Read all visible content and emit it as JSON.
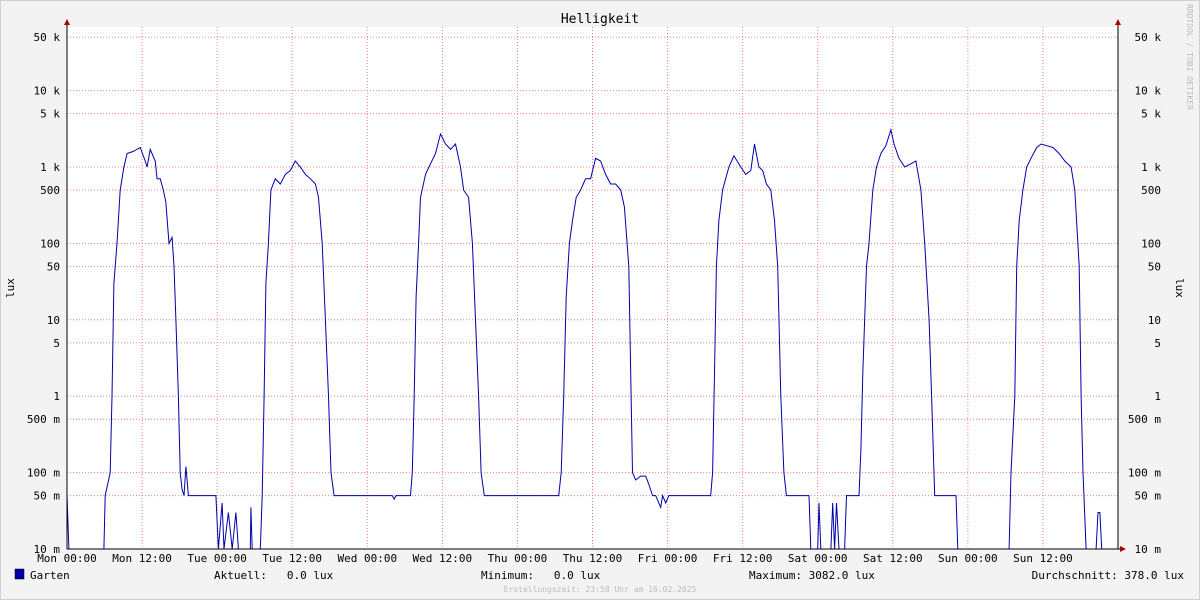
{
  "chart_data": {
    "type": "line",
    "title": "Helligkeit",
    "y_label": "lux",
    "watermark": "RRDTOOL / TOBI OETIKER",
    "log_y": true,
    "grid": true,
    "xlim": [
      0,
      168
    ],
    "ylim": [
      0.01,
      68000
    ],
    "xticks": [
      {
        "value": 0,
        "label": "Mon 00:00"
      },
      {
        "value": 12,
        "label": "Mon 12:00"
      },
      {
        "value": 24,
        "label": "Tue 00:00"
      },
      {
        "value": 36,
        "label": "Tue 12:00"
      },
      {
        "value": 48,
        "label": "Wed 00:00"
      },
      {
        "value": 60,
        "label": "Wed 12:00"
      },
      {
        "value": 72,
        "label": "Thu 00:00"
      },
      {
        "value": 84,
        "label": "Thu 12:00"
      },
      {
        "value": 96,
        "label": "Fri 00:00"
      },
      {
        "value": 108,
        "label": "Fri 12:00"
      },
      {
        "value": 120,
        "label": "Sat 00:00"
      },
      {
        "value": 132,
        "label": "Sat 12:00"
      },
      {
        "value": 144,
        "label": "Sun 00:00"
      },
      {
        "value": 156,
        "label": "Sun 12:00"
      }
    ],
    "yticks": [
      {
        "value": 50000,
        "label": "50 k"
      },
      {
        "value": 10000,
        "label": "10 k"
      },
      {
        "value": 5000,
        "label": "5 k"
      },
      {
        "value": 1000,
        "label": "1 k"
      },
      500,
      100,
      50,
      10,
      5,
      1,
      {
        "value": 0.5,
        "label": "500 m"
      },
      {
        "value": 0.1,
        "label": "100 m"
      },
      {
        "value": 0.05,
        "label": "50 m"
      },
      {
        "value": 0.01,
        "label": "10 m"
      }
    ],
    "series": [
      {
        "name": "Garten",
        "color": "#0000aa",
        "x": [
          0,
          0.3,
          5.9,
          6.1,
          6.9,
          7.2,
          7.5,
          8,
          8.5,
          9.1,
          9.6,
          10.6,
          11.7,
          12.5,
          12.8,
          13.3,
          14.1,
          14.4,
          14.9,
          15.4,
          15.8,
          16.3,
          16.8,
          17.1,
          17.4,
          17.8,
          18.1,
          18.4,
          18.7,
          19,
          19.4,
          23.8,
          24.2,
          24.8,
          25.1,
          25.8,
          26.4,
          27,
          27.4,
          29.3,
          29.4,
          29.6,
          30.9,
          31.2,
          31.5,
          31.8,
          32.2,
          32.6,
          33.3,
          34.1,
          34.9,
          35.7,
          36.5,
          37.3,
          38.1,
          38.9,
          39.7,
          40.2,
          40.8,
          41.3,
          41.8,
          42.2,
          42.7,
          52,
          52.3,
          52.6,
          54.9,
          55.2,
          55.5,
          55.8,
          56.2,
          56.5,
          57.3,
          58.1,
          58.9,
          59.7,
          60.5,
          61.3,
          62.1,
          62.9,
          63.4,
          64.2,
          64.8,
          65.3,
          65.8,
          66.2,
          66.7,
          78.6,
          79,
          79.4,
          79.8,
          80.3,
          80.8,
          81.4,
          82.1,
          82.9,
          83.7,
          84.5,
          85.3,
          86.1,
          86.9,
          87.7,
          88.5,
          89.1,
          89.8,
          90.1,
          90.4,
          90.9,
          91.7,
          92.5,
          93,
          93.6,
          94.1,
          94.9,
          95.2,
          95.7,
          96.2,
          102.9,
          103.2,
          103.5,
          103.8,
          104.2,
          104.8,
          105.8,
          106.6,
          107.7,
          108.5,
          109.3,
          109.9,
          110.6,
          111.2,
          111.8,
          112.5,
          113.1,
          113.6,
          114.1,
          114.6,
          115,
          118.6,
          118.9,
          120,
          120.2,
          120.5,
          122.1,
          122.4,
          122.7,
          123,
          123.4,
          124.3,
          124.6,
          126.6,
          126.9,
          127.2,
          127.8,
          128.2,
          128.8,
          129.4,
          130.1,
          130.9,
          131.7,
          132.2,
          133,
          133.9,
          134.9,
          135.7,
          136.5,
          137.1,
          137.8,
          138.2,
          138.7,
          142.1,
          142.4,
          150.6,
          150.9,
          151.5,
          151.8,
          152.2,
          152.8,
          153.4,
          154.1,
          155,
          155.7,
          156.6,
          157.6,
          158.6,
          159.5,
          160.5,
          161.1,
          161.8,
          162.1,
          162.4,
          162.9,
          164.5,
          164.8,
          165.1,
          165.4,
          168
        ],
        "values": [
          0.05,
          0.01,
          0.01,
          0.05,
          0.1,
          1,
          30,
          100,
          500,
          1000,
          1500,
          1600,
          1800,
          1200,
          1000,
          1700,
          1200,
          700,
          700,
          500,
          350,
          100,
          120,
          50,
          10,
          1,
          0.1,
          0.06,
          0.05,
          0.12,
          0.05,
          0.05,
          0.01,
          0.04,
          0.01,
          0.03,
          0.01,
          0.03,
          0.01,
          0.01,
          0.035,
          0.01,
          0.01,
          0.05,
          1,
          30,
          100,
          500,
          700,
          600,
          800,
          900,
          1200,
          1000,
          800,
          700,
          600,
          400,
          100,
          10,
          1,
          0.1,
          0.05,
          0.05,
          0.045,
          0.05,
          0.05,
          0.1,
          1,
          20,
          100,
          400,
          800,
          1100,
          1500,
          2700,
          2000,
          1700,
          2000,
          1000,
          500,
          400,
          100,
          10,
          1,
          0.1,
          0.05,
          0.05,
          0.1,
          1,
          20,
          100,
          200,
          400,
          500,
          700,
          700,
          1300,
          1200,
          800,
          600,
          600,
          500,
          300,
          50,
          2,
          0.1,
          0.08,
          0.09,
          0.09,
          0.07,
          0.05,
          0.05,
          0.035,
          0.05,
          0.04,
          0.05,
          0.05,
          0.1,
          2,
          50,
          200,
          500,
          1000,
          1400,
          1000,
          800,
          900,
          2000,
          1000,
          900,
          600,
          500,
          200,
          50,
          1,
          0.1,
          0.05,
          0.05,
          0.01,
          0.01,
          0.04,
          0.01,
          0.01,
          0.04,
          0.01,
          0.04,
          0.01,
          0.01,
          0.05,
          0.05,
          0.2,
          2,
          50,
          100,
          500,
          1000,
          1500,
          1900,
          3082,
          2000,
          1300,
          1000,
          1100,
          1200,
          500,
          100,
          10,
          1,
          0.05,
          0.05,
          0.01,
          0.01,
          0.1,
          1,
          50,
          200,
          500,
          1000,
          1300,
          1800,
          2000,
          1900,
          1800,
          1500,
          1200,
          1000,
          500,
          50,
          1,
          0.1,
          0.01,
          0.01,
          0.03,
          0.03,
          0.01,
          0.01
        ]
      }
    ],
    "stats": [
      "Aktuell:   0.0 lux",
      "Minimum:   0.0 lux",
      "Maximum: 3082.0 lux",
      "Durchschnitt: 378.0 lux"
    ],
    "footer": "Erstellungszeit: 23:58 Uhr am 16.02.2025"
  }
}
